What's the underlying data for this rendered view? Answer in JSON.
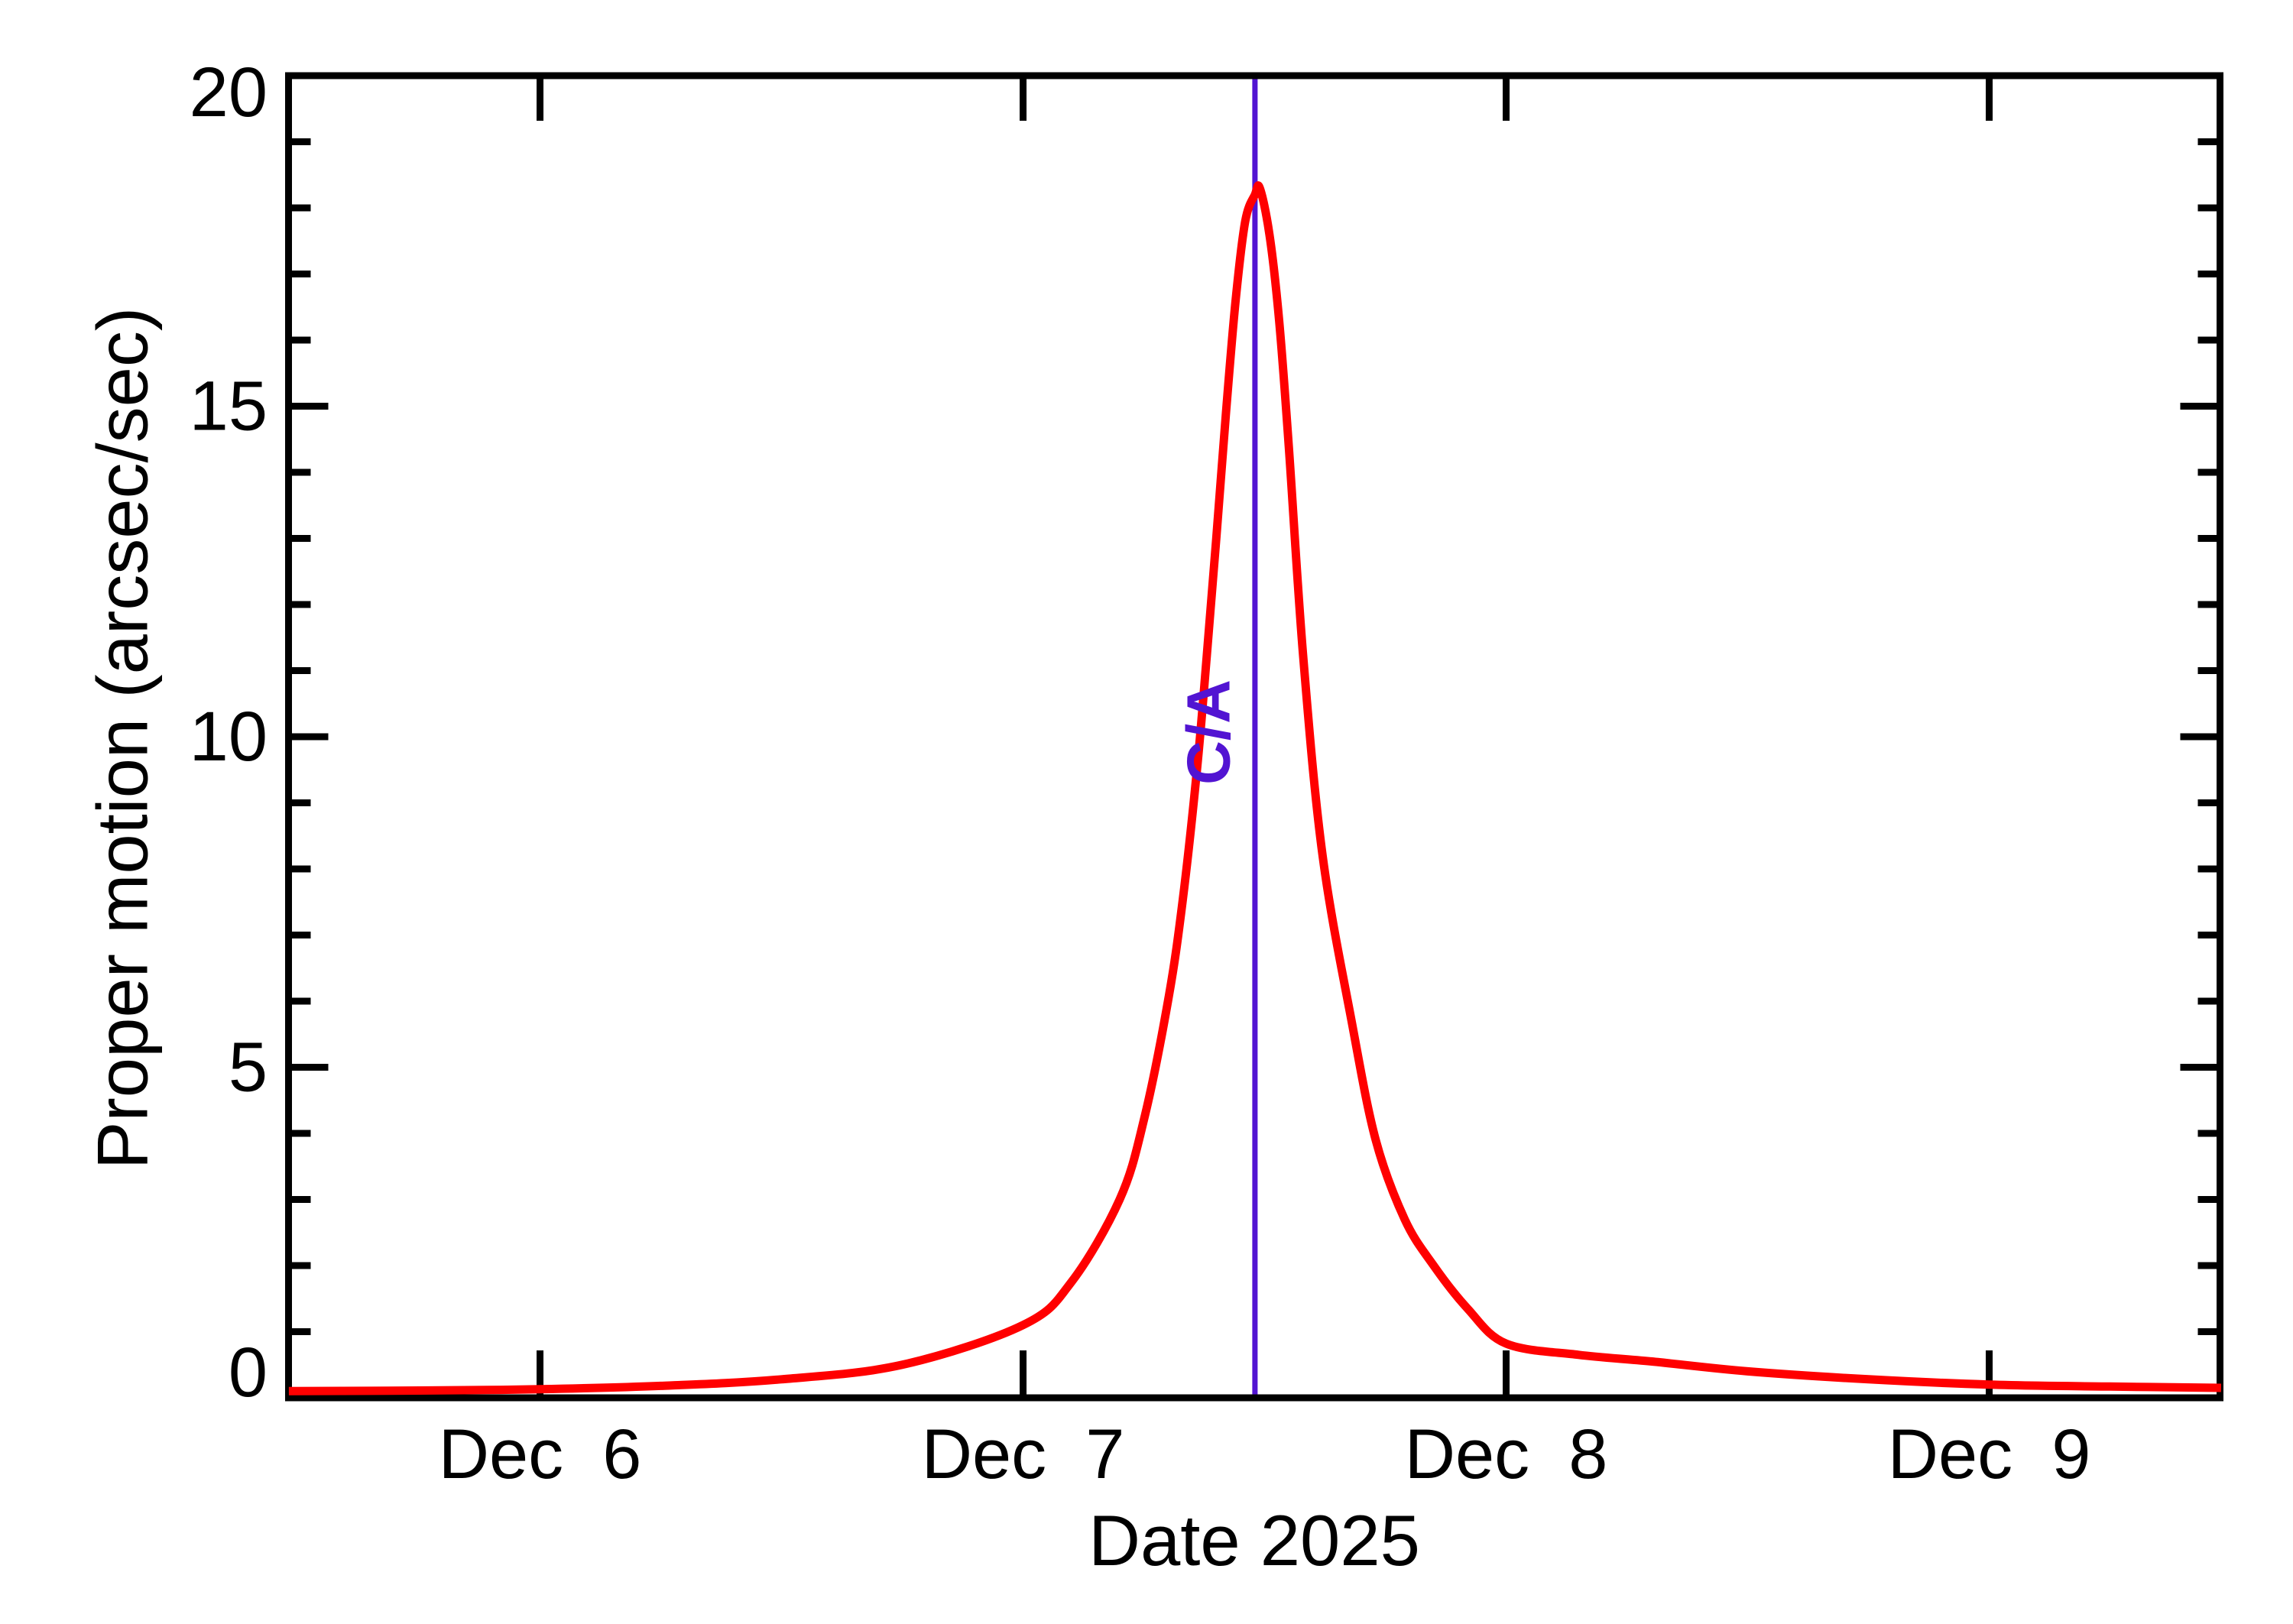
{
  "chart_data": {
    "type": "line",
    "title": "",
    "xlabel": "Date 2025",
    "ylabel": "Proper motion (arcsec/sec)",
    "x_unit_note": "t = days from Dec 6 00:00 (axis spans Dec 5.48 to Dec 9.48)",
    "xlim_days": [
      -0.5206,
      3.4778
    ],
    "ylim": [
      0,
      20
    ],
    "x_ticks": [
      {
        "t": 0,
        "label": "Dec  6"
      },
      {
        "t": 1,
        "label": "Dec  7"
      },
      {
        "t": 2,
        "label": "Dec  8"
      },
      {
        "t": 3,
        "label": "Dec  9"
      }
    ],
    "y_ticks": [
      0,
      5,
      10,
      15,
      20
    ],
    "y_minor_step": 1,
    "grid": false,
    "legend": null,
    "peak": {
      "t": 1.49,
      "value": 18.3
    },
    "annotation": {
      "label": "C/A",
      "t": 1.48,
      "color": "#5214D2"
    },
    "series": [
      {
        "name": "proper motion",
        "color": "#FF0000",
        "points": [
          [
            -0.52,
            0.1
          ],
          [
            -0.25,
            0.11
          ],
          [
            0.0,
            0.13
          ],
          [
            0.25,
            0.18
          ],
          [
            0.5,
            0.28
          ],
          [
            0.75,
            0.5
          ],
          [
            1.0,
            1.1
          ],
          [
            1.1,
            1.75
          ],
          [
            1.2,
            3.0
          ],
          [
            1.25,
            4.2
          ],
          [
            1.3,
            6.0
          ],
          [
            1.33,
            7.5
          ],
          [
            1.36,
            9.5
          ],
          [
            1.38,
            11.2
          ],
          [
            1.4,
            13.0
          ],
          [
            1.42,
            14.9
          ],
          [
            1.44,
            16.6
          ],
          [
            1.46,
            17.8
          ],
          [
            1.48,
            18.2
          ],
          [
            1.49,
            18.3
          ],
          [
            1.51,
            17.6
          ],
          [
            1.53,
            16.3
          ],
          [
            1.55,
            14.4
          ],
          [
            1.58,
            11.2
          ],
          [
            1.62,
            8.2
          ],
          [
            1.68,
            5.7
          ],
          [
            1.73,
            3.9
          ],
          [
            1.79,
            2.7
          ],
          [
            1.85,
            2.0
          ],
          [
            1.92,
            1.35
          ],
          [
            2.0,
            0.82
          ],
          [
            2.15,
            0.65
          ],
          [
            2.3,
            0.55
          ],
          [
            2.5,
            0.4
          ],
          [
            2.75,
            0.28
          ],
          [
            3.0,
            0.2
          ],
          [
            3.25,
            0.17
          ],
          [
            3.48,
            0.15
          ]
        ]
      }
    ],
    "colors": {
      "curve": "#FF0000",
      "axis": "#000000",
      "background": "#FFFFFF",
      "closest_approach": "#5214D2"
    }
  }
}
